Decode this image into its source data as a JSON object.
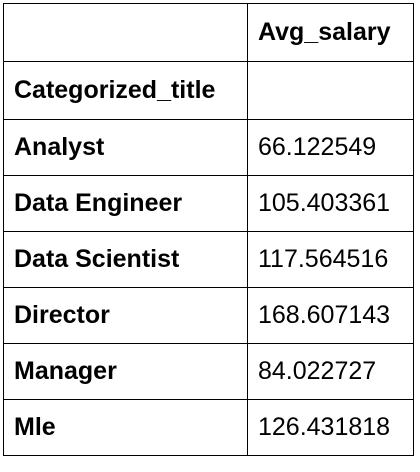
{
  "table": {
    "column_header": "Avg_salary",
    "index_name": "Categorized_title",
    "rows": [
      {
        "label": "Analyst",
        "value": "66.122549"
      },
      {
        "label": "Data Engineer",
        "value": "105.403361"
      },
      {
        "label": "Data Scientist",
        "value": "117.564516"
      },
      {
        "label": "Director",
        "value": "168.607143"
      },
      {
        "label": "Manager",
        "value": "84.022727"
      },
      {
        "label": "Mle",
        "value": "126.431818"
      }
    ]
  }
}
